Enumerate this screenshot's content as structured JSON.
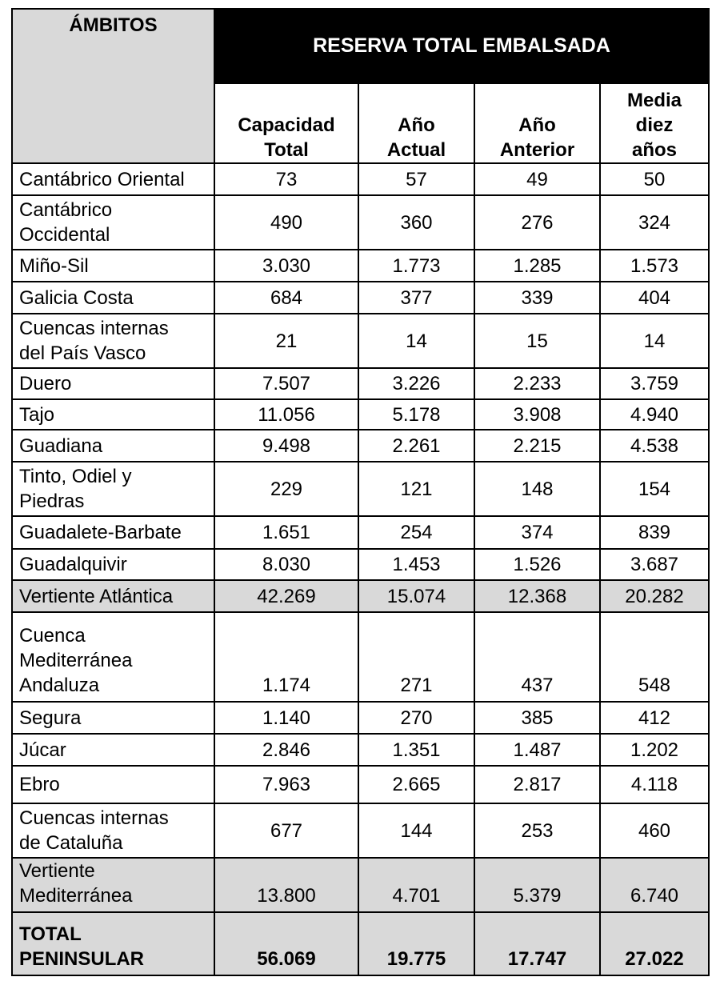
{
  "header": {
    "title": "ÁMBITOS",
    "group": "RESERVA TOTAL EMBALSADA",
    "columns": [
      [
        "Capacidad",
        "Total"
      ],
      [
        "Año",
        "Actual"
      ],
      [
        "Año",
        "Anterior"
      ],
      [
        "Media",
        "diez",
        "años"
      ]
    ]
  },
  "rows": [
    {
      "label": [
        "Cantábrico Oriental"
      ],
      "values": [
        "73",
        "57",
        "49",
        "50"
      ]
    },
    {
      "label": [
        "Cantábrico",
        "Occidental"
      ],
      "values": [
        "490",
        "360",
        "276",
        "324"
      ]
    },
    {
      "label": [
        "Miño-Sil"
      ],
      "values": [
        "3.030",
        "1.773",
        "1.285",
        "1.573"
      ]
    },
    {
      "label": [
        "Galicia Costa"
      ],
      "values": [
        "684",
        "377",
        "339",
        "404"
      ]
    },
    {
      "label": [
        "Cuencas internas",
        "del País Vasco"
      ],
      "values": [
        "21",
        "14",
        "15",
        "14"
      ]
    },
    {
      "label": [
        "Duero"
      ],
      "values": [
        "7.507",
        "3.226",
        "2.233",
        "3.759"
      ]
    },
    {
      "label": [
        "Tajo"
      ],
      "values": [
        "11.056",
        "5.178",
        "3.908",
        "4.940"
      ]
    },
    {
      "label": [
        "Guadiana"
      ],
      "values": [
        "9.498",
        "2.261",
        "2.215",
        "4.538"
      ]
    },
    {
      "label": [
        "Tinto, Odiel y",
        "Piedras"
      ],
      "values": [
        "229",
        "121",
        "148",
        "154"
      ]
    },
    {
      "label": [
        "Guadalete-Barbate"
      ],
      "values": [
        "1.651",
        "254",
        "374",
        "839"
      ]
    },
    {
      "label": [
        "Guadalquivir"
      ],
      "values": [
        "8.030",
        "1.453",
        "1.526",
        "3.687"
      ]
    },
    {
      "label": [
        "Vertiente Atlántica"
      ],
      "values": [
        "42.269",
        "15.074",
        "12.368",
        "20.282"
      ]
    },
    {
      "label": [
        "Cuenca",
        "Mediterránea",
        "Andaluza"
      ],
      "values": [
        "1.174",
        "271",
        "437",
        "548"
      ]
    },
    {
      "label": [
        "Segura"
      ],
      "values": [
        "1.140",
        "270",
        "385",
        "412"
      ]
    },
    {
      "label": [
        "Júcar"
      ],
      "values": [
        "2.846",
        "1.351",
        "1.487",
        "1.202"
      ]
    },
    {
      "label": [
        "Ebro"
      ],
      "values": [
        "7.963",
        "2.665",
        "2.817",
        "4.118"
      ]
    },
    {
      "label": [
        "Cuencas internas",
        "de Cataluña"
      ],
      "values": [
        "677",
        "144",
        "253",
        "460"
      ]
    },
    {
      "label": [
        "Vertiente",
        "Mediterránea"
      ],
      "values": [
        "13.800",
        "4.701",
        "5.379",
        "6.740"
      ]
    },
    {
      "label": [
        "TOTAL",
        "PENINSULAR"
      ],
      "values": [
        "56.069",
        "19.775",
        "17.747",
        "27.022"
      ]
    }
  ]
}
